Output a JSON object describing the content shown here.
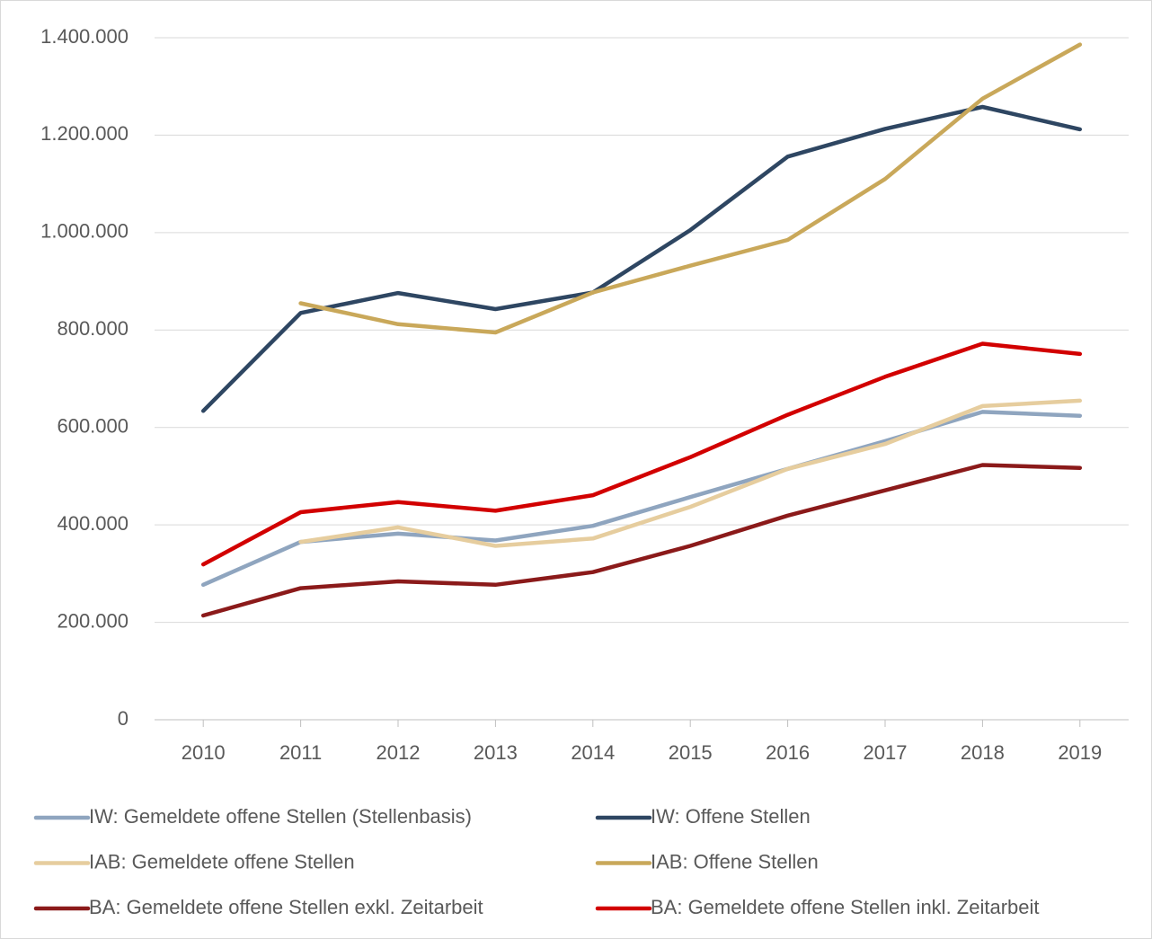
{
  "chart_data": {
    "type": "line",
    "categories": [
      "2010",
      "2011",
      "2012",
      "2013",
      "2014",
      "2015",
      "2016",
      "2017",
      "2018",
      "2019"
    ],
    "series": [
      {
        "name": "IW: Gemeldete offene Stellen (Stellenbasis)",
        "color": "#8fa5bf",
        "values": [
          277000,
          365000,
          382000,
          368000,
          398000,
          457000,
          515000,
          572000,
          632000,
          624000
        ]
      },
      {
        "name": "IW: Offene Stellen",
        "color": "#2e4662",
        "values": [
          634000,
          835000,
          876000,
          843000,
          877000,
          1005000,
          1156000,
          1213000,
          1258000,
          1212000
        ]
      },
      {
        "name": "IAB: Gemeldete offene Stellen",
        "color": "#e6cd9e",
        "values": [
          null,
          365000,
          395000,
          357000,
          372000,
          437000,
          515000,
          566000,
          644000,
          655000
        ]
      },
      {
        "name": "IAB: Offene Stellen",
        "color": "#c9a85a",
        "values": [
          null,
          855000,
          812000,
          795000,
          877000,
          932000,
          985000,
          1110000,
          1275000,
          1386000
        ]
      },
      {
        "name": "BA: Gemeldete offene Stellen exkl. Zeitarbeit",
        "color": "#8b1a1a",
        "values": [
          214000,
          270000,
          284000,
          277000,
          303000,
          357000,
          419000,
          471000,
          523000,
          517000
        ]
      },
      {
        "name": "BA: Gemeldete offene Stellen inkl. Zeitarbeit",
        "color": "#d20000",
        "values": [
          319000,
          426000,
          447000,
          429000,
          461000,
          539000,
          626000,
          704000,
          772000,
          751000
        ]
      }
    ],
    "ylim": [
      0,
      1400000
    ],
    "yticks": [
      0,
      {
        "value": 200000,
        "label": "200.000"
      },
      {
        "value": 400000,
        "label": "400.000"
      },
      {
        "value": 600000,
        "label": "600.000"
      },
      {
        "value": 800000,
        "label": "800.000"
      },
      {
        "value": 1000000,
        "label": "1.000.000"
      },
      {
        "value": 1200000,
        "label": "1.200.000"
      },
      {
        "value": 1400000,
        "label": "1.400.000"
      }
    ],
    "grid": true
  }
}
